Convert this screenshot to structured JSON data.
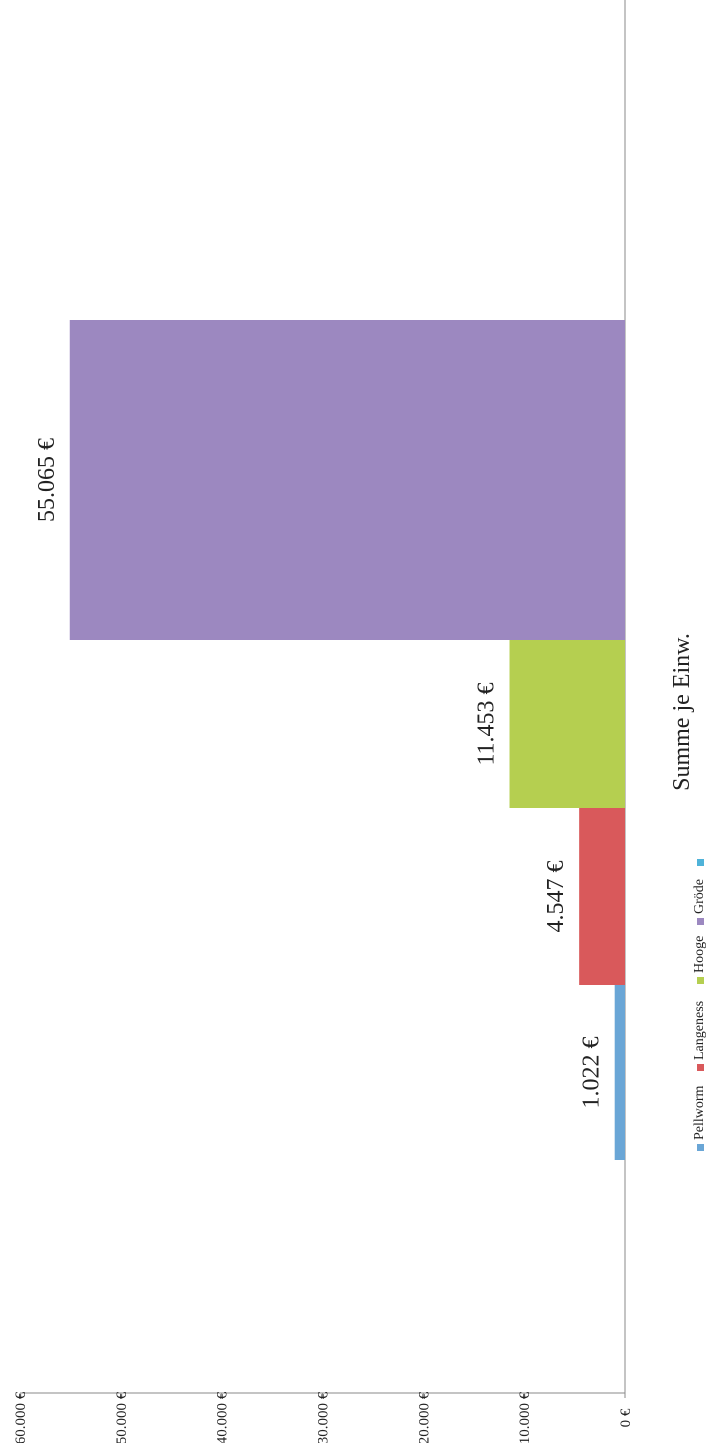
{
  "chart_data": {
    "type": "bar",
    "orientation": "rotated-90-cw",
    "title": "Summe je Einw.",
    "categories": [
      "Pellworm",
      "Langeness",
      "Hooge",
      "Gröde"
    ],
    "values": [
      1022,
      4547,
      11453,
      55065
    ],
    "value_labels": [
      "1.022 €",
      "4.547 €",
      "11.453 €",
      "55.065 €"
    ],
    "colors": [
      "#6aa6d6",
      "#d9595b",
      "#b5cf50",
      "#9c88c0"
    ],
    "ylim": [
      0,
      60000
    ],
    "yticks": [
      0,
      10000,
      20000,
      30000,
      40000,
      50000,
      60000
    ],
    "ytick_labels": [
      "0 €",
      "10.000 €",
      "20.000 €",
      "30.000 €",
      "40.000 €",
      "50.000 €",
      "60.000 €"
    ],
    "legend": {
      "placement": "bottom",
      "entries": [
        {
          "name": "Pellworm",
          "color": "#6aa6d6"
        },
        {
          "name": "Langeness",
          "color": "#d9595b"
        },
        {
          "name": "Hooge",
          "color": "#b5cf50"
        },
        {
          "name": "Gröde",
          "color": "#9c88c0"
        },
        {
          "name": "",
          "color": "#4fb3d9"
        }
      ]
    },
    "grid": false
  }
}
